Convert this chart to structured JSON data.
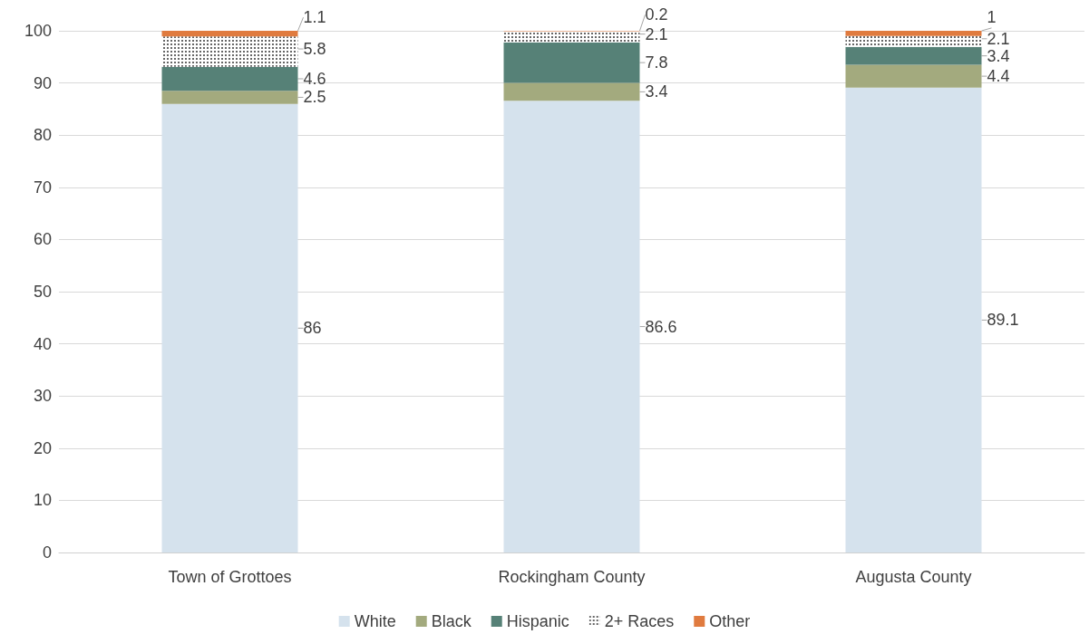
{
  "chart_data": {
    "type": "bar",
    "stacked": true,
    "categories": [
      "Town of Grottoes",
      "Rockingham County",
      "Augusta County"
    ],
    "series": [
      {
        "name": "White",
        "color": "#d5e2ed",
        "values": [
          86,
          86.6,
          89.1
        ]
      },
      {
        "name": "Black",
        "color": "#a3aa7e",
        "values": [
          2.5,
          3.4,
          4.4
        ]
      },
      {
        "name": "Hispanic",
        "color": "#568177",
        "values": [
          4.6,
          7.8,
          3.4
        ]
      },
      {
        "name": "2+ Races",
        "color": "#000000",
        "values": [
          5.8,
          2.1,
          2.1
        ]
      },
      {
        "name": "Other",
        "color": "#e07b3f",
        "values": [
          1.1,
          0.2,
          1
        ]
      }
    ],
    "ylim": [
      0,
      100
    ],
    "yticks": [
      0,
      10,
      20,
      30,
      40,
      50,
      60,
      70,
      80,
      90,
      100
    ],
    "grid": "y",
    "legend": "bottom",
    "data_labels": true
  }
}
